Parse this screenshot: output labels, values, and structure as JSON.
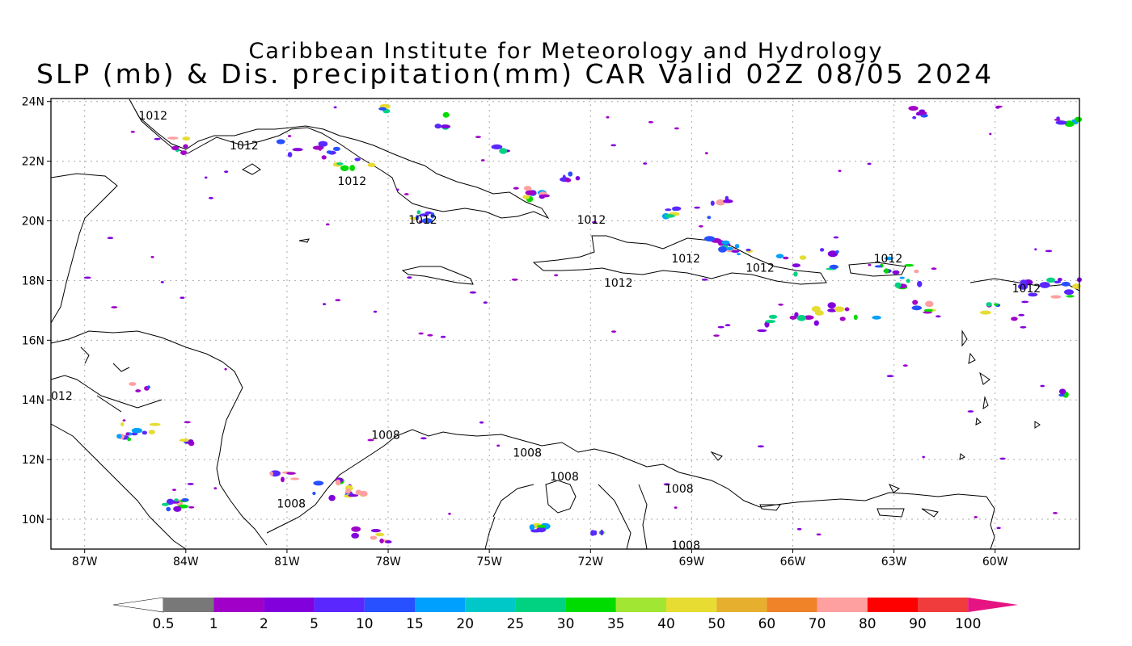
{
  "title": {
    "line1": "Caribbean Institute for Meteorology and Hydrology",
    "line2": "SLP (mb) & Dis. precipitation(mm) CAR Valid 02Z 08/05 2024"
  },
  "map": {
    "lon_range": [
      -88,
      -57.5
    ],
    "lat_range": [
      9,
      24.1
    ],
    "lon_ticks": [
      {
        "value": -87,
        "label": "87W"
      },
      {
        "value": -84,
        "label": "84W"
      },
      {
        "value": -81,
        "label": "81W"
      },
      {
        "value": -78,
        "label": "78W"
      },
      {
        "value": -75,
        "label": "75W"
      },
      {
        "value": -72,
        "label": "72W"
      },
      {
        "value": -69,
        "label": "69W"
      },
      {
        "value": -66,
        "label": "66W"
      },
      {
        "value": -63,
        "label": "63W"
      },
      {
        "value": -60,
        "label": "60W"
      }
    ],
    "lat_ticks": [
      {
        "value": 24,
        "label": "24N"
      },
      {
        "value": 22,
        "label": "22N"
      },
      {
        "value": 20,
        "label": "20N"
      },
      {
        "value": 18,
        "label": "18N"
      },
      {
        "value": 16,
        "label": "16N"
      },
      {
        "value": 14,
        "label": "14N"
      },
      {
        "value": 12,
        "label": "12N"
      },
      {
        "value": 10,
        "label": "10N"
      }
    ],
    "gridlines": true,
    "isobar_labels": [
      {
        "text": "1012",
        "lon": -85.4,
        "lat": 23.4
      },
      {
        "text": "1012",
        "lon": -82.7,
        "lat": 22.4
      },
      {
        "text": "1012",
        "lon": -79.5,
        "lat": 21.2
      },
      {
        "text": "1012",
        "lon": -77.4,
        "lat": 19.9
      },
      {
        "text": "1012",
        "lon": -72.4,
        "lat": 19.9
      },
      {
        "text": "1012",
        "lon": -69.6,
        "lat": 18.6
      },
      {
        "text": "1012",
        "lon": -67.4,
        "lat": 18.3
      },
      {
        "text": "1012",
        "lon": -71.6,
        "lat": 17.8
      },
      {
        "text": "1012",
        "lon": -63.6,
        "lat": 18.6
      },
      {
        "text": "1012",
        "lon": -59.5,
        "lat": 17.6
      },
      {
        "text": "012",
        "lon": -88.0,
        "lat": 14.0
      },
      {
        "text": "1008",
        "lon": -78.5,
        "lat": 12.7
      },
      {
        "text": "1008",
        "lon": -74.3,
        "lat": 12.1
      },
      {
        "text": "1008",
        "lon": -73.2,
        "lat": 11.3
      },
      {
        "text": "1008",
        "lon": -69.8,
        "lat": 10.9
      },
      {
        "text": "1008",
        "lon": -81.3,
        "lat": 10.4
      },
      {
        "text": "1008",
        "lon": -69.6,
        "lat": 9.0
      }
    ]
  },
  "colorbar": {
    "labels": [
      "0.5",
      "1",
      "2",
      "5",
      "10",
      "15",
      "20",
      "25",
      "30",
      "35",
      "40",
      "50",
      "60",
      "70",
      "80",
      "90",
      "100"
    ],
    "colors": [
      "#787878",
      "#a000c8",
      "#8200dc",
      "#5a28ff",
      "#2850ff",
      "#00a0ff",
      "#00c8c8",
      "#00d282",
      "#00dc00",
      "#a0e632",
      "#e6dc32",
      "#e6af2d",
      "#f08228",
      "#ffa0a0",
      "#ff0000",
      "#f03c3c"
    ],
    "end_color": "#e61482"
  },
  "precip_colors": [
    "#8200dc",
    "#a000c8",
    "#5a28ff",
    "#2850ff",
    "#00a0ff",
    "#00d282",
    "#00dc00",
    "#e6dc32",
    "#ffa0a0"
  ]
}
